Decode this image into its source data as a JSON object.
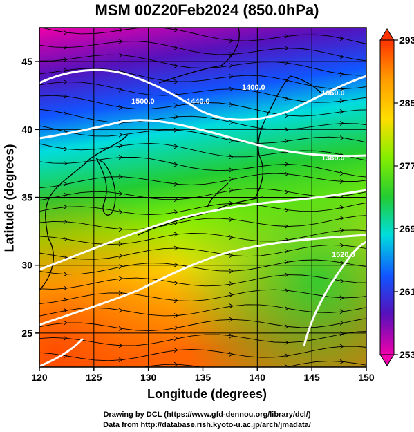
{
  "title": "MSM 00Z20Feb2024 (850.0hPa)",
  "axes": {
    "xlabel": "Longitude (degrees)",
    "ylabel": "Latitude  (degrees)",
    "xticks": [
      "120",
      "125",
      "130",
      "135",
      "140",
      "145",
      "150"
    ],
    "yticks": [
      "25",
      "30",
      "35",
      "40",
      "45"
    ],
    "xlim": [
      120,
      150
    ],
    "ylim": [
      22.5,
      47.5
    ]
  },
  "colorbar": {
    "min": 253,
    "max": 293,
    "ticks": [
      "293",
      "285",
      "277",
      "269",
      "261",
      "253"
    ],
    "colors": [
      "#ff3300",
      "#ff9900",
      "#ffdd00",
      "#88ee00",
      "#22cc33",
      "#00dddd",
      "#1155ff",
      "#5511bb",
      "#ee00aa"
    ]
  },
  "contours": {
    "color": "#ffffff",
    "labels": [
      "1440.0",
      "1400.0",
      "1360.0",
      "1360.0",
      "1520.0",
      "1500.0"
    ]
  },
  "credits": {
    "line1": "Drawing by DCL (https://www.gfd-dennou.org/library/dcl/)",
    "line2": "Data from http://database.rish.kyoto-u.ac.jp/arch/jmadata/"
  }
}
